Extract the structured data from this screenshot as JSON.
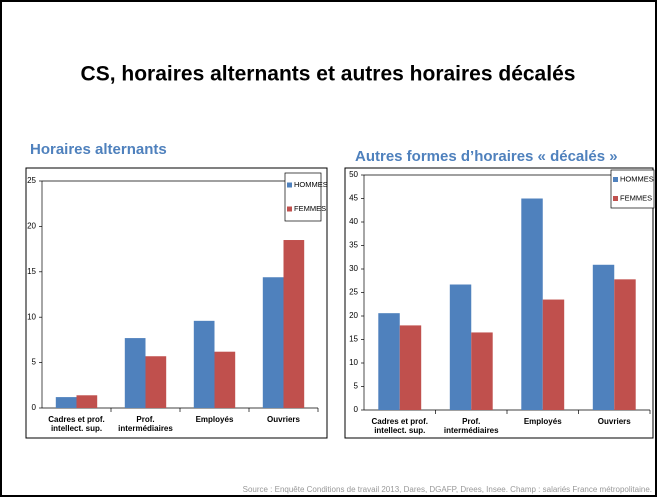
{
  "title": "CS, horaires alternants et autres horaires décalés",
  "source": "Source : Enquête Conditions de travail 2013, Dares, DGAFP, Drees, Insee. Champ : salariés France métropolitaine.",
  "chart_data": [
    {
      "type": "bar",
      "title": "Horaires alternants",
      "categories": [
        "Cadres et prof.\nintellect. sup.",
        "Prof.\nintermédiaires",
        "Employés",
        "Ouvriers"
      ],
      "series": [
        {
          "name": "HOMMES",
          "color": "#4f81bd",
          "values": [
            1.2,
            7.7,
            9.6,
            14.4
          ]
        },
        {
          "name": "FEMMES",
          "color": "#c0504d",
          "values": [
            1.4,
            5.7,
            6.2,
            18.5
          ]
        }
      ],
      "ylim": [
        0,
        25
      ],
      "yticks": [
        0,
        5,
        10,
        15,
        20,
        25
      ],
      "legend": "top-right"
    },
    {
      "type": "bar",
      "title": "Autres formes d’horaires « décalés »",
      "categories": [
        "Cadres et prof.\nintellect. sup.",
        "Prof.\nintermédiaires",
        "Employés",
        "Ouvriers"
      ],
      "series": [
        {
          "name": "HOMMES",
          "color": "#4f81bd",
          "values": [
            20.6,
            26.7,
            45,
            30.9
          ]
        },
        {
          "name": "FEMMES",
          "color": "#c0504d",
          "values": [
            18,
            16.5,
            23.5,
            27.8
          ]
        }
      ],
      "ylim": [
        0,
        50
      ],
      "yticks": [
        0,
        5,
        10,
        15,
        20,
        25,
        30,
        35,
        40,
        45,
        50
      ],
      "legend": "top-right"
    }
  ]
}
